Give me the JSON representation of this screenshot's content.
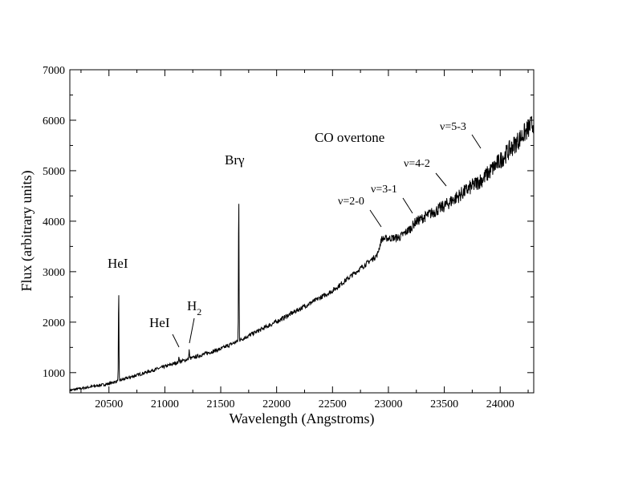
{
  "chart_data": {
    "type": "line",
    "xlabel": "Wavelength (Angstroms)",
    "ylabel": "Flux (arbitrary units)",
    "xlim": [
      20150,
      24300
    ],
    "ylim": [
      600,
      7000
    ],
    "xticks": [
      20500,
      21000,
      21500,
      22000,
      22500,
      23000,
      23500,
      24000
    ],
    "yticks": [
      1000,
      2000,
      3000,
      4000,
      5000,
      6000,
      7000
    ],
    "grid": false,
    "legend": "none",
    "series": [
      {
        "continuum": {
          "x": [
            20150,
            20500,
            21000,
            21500,
            21650,
            22000,
            22500,
            22900,
            22940,
            23100,
            23200,
            23240,
            23500,
            23850,
            24000,
            24300
          ],
          "y": [
            650,
            780,
            1120,
            1470,
            1620,
            2010,
            2620,
            3330,
            3650,
            3680,
            3860,
            3980,
            4300,
            4850,
            5200,
            5950
          ]
        },
        "lines": [
          {
            "x": 20587,
            "peak": 2680
          },
          {
            "x": 21126,
            "peak": 1320
          },
          {
            "x": 21218,
            "peak": 1460
          },
          {
            "x": 21661,
            "peak": 4580
          }
        ]
      }
    ],
    "annotations": {
      "hei_1": "HeI",
      "hei_2": "HeI",
      "h2_base": "H",
      "h2_sub": "2",
      "br_gamma": "Brγ",
      "co_overtone": "CO overtone",
      "v20": "ν=2-0",
      "v31": "ν=3-1",
      "v42": "ν=4-2",
      "v53": "ν=5-3"
    }
  }
}
